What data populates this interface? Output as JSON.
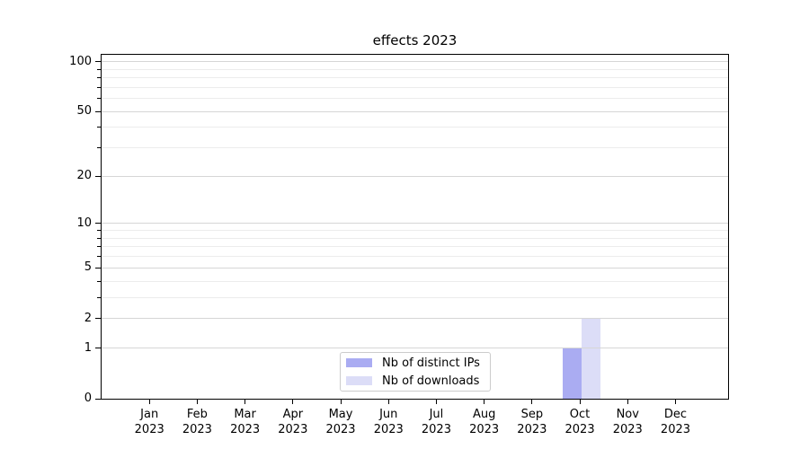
{
  "chart_data": {
    "type": "bar",
    "title": "effects 2023",
    "categories": [
      "Jan 2023",
      "Feb 2023",
      "Mar 2023",
      "Apr 2023",
      "May 2023",
      "Jun 2023",
      "Jul 2023",
      "Aug 2023",
      "Sep 2023",
      "Oct 2023",
      "Nov 2023",
      "Dec 2023"
    ],
    "series": [
      {
        "name": "Nb of distinct IPs",
        "color": "#aaacf2",
        "values": [
          0,
          0,
          0,
          0,
          0,
          0,
          0,
          0,
          0,
          1,
          0,
          0
        ]
      },
      {
        "name": "Nb of downloads",
        "color": "#dcddf7",
        "values": [
          0,
          0,
          0,
          0,
          0,
          0,
          0,
          0,
          0,
          2,
          0,
          0
        ]
      }
    ],
    "y_axis": {
      "scale": "log1p",
      "ylim": [
        0,
        110
      ],
      "major_ticks": [
        0,
        1,
        2,
        5,
        10,
        20,
        50,
        100
      ],
      "minor_ticks": [
        3,
        4,
        6,
        7,
        8,
        9,
        30,
        40,
        60,
        70,
        80,
        90
      ]
    },
    "grid": {
      "horizontal": true,
      "vertical": false,
      "major_color": "#d6d6d6",
      "minor_color": "#ececec"
    },
    "legend": {
      "position": "inside-bottom-center",
      "border_color": "#cccccc"
    }
  }
}
